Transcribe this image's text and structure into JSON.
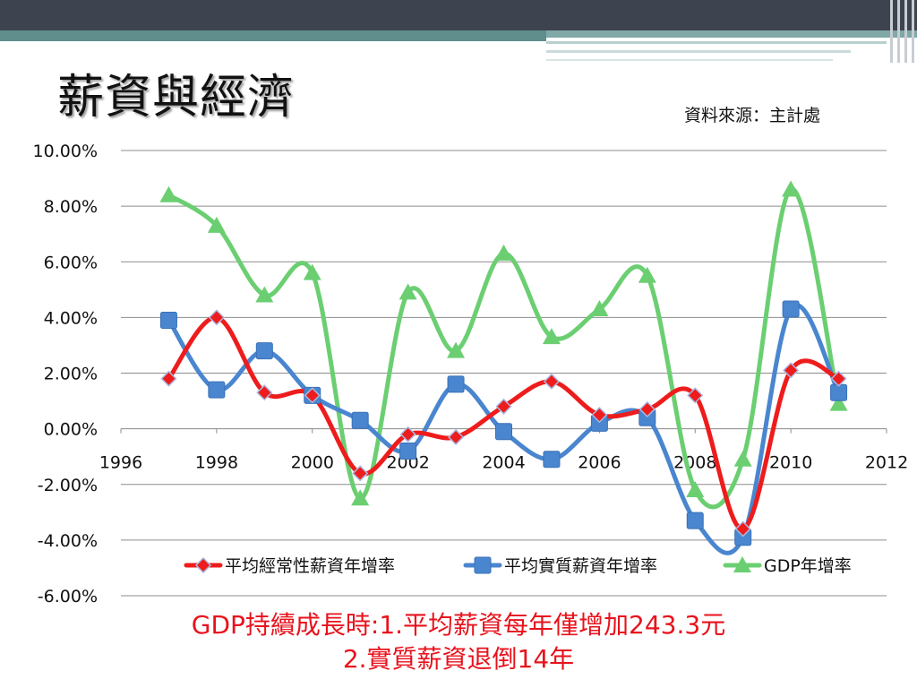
{
  "slide": {
    "title": "薪資與經濟",
    "source": "資料來源：主計處",
    "note_line1": "GDP持續成長時:1.平均薪資每年僅增加243.3元",
    "note_line2": "2.實質薪資退倒14年"
  },
  "colors": {
    "header_bar": "#3d4450",
    "header_stripe": "#5f8e8c",
    "note_text": "#e8121c"
  },
  "chart_data": {
    "type": "line",
    "smooth": true,
    "title": "",
    "xlabel": "",
    "ylabel": "",
    "xlim": [
      1996,
      2012
    ],
    "ylim": [
      -6,
      10
    ],
    "x_ticks": [
      "1996",
      "1998",
      "2000",
      "2002",
      "2004",
      "2006",
      "2008",
      "2010",
      "2012"
    ],
    "y_ticks": [
      "10.00%",
      "8.00%",
      "6.00%",
      "4.00%",
      "2.00%",
      "0.00%",
      "-2.00%",
      "-4.00%",
      "-6.00%"
    ],
    "grid": true,
    "legend_position": "bottom",
    "x": [
      1997,
      1998,
      1999,
      2000,
      2001,
      2002,
      2003,
      2004,
      2005,
      2006,
      2007,
      2008,
      2009,
      2010,
      2011
    ],
    "series": [
      {
        "name": "平均經常性薪資年增率",
        "color": "#ee1c1c",
        "marker": "diamond",
        "values": [
          1.8,
          4.0,
          1.3,
          1.2,
          -1.6,
          -0.2,
          -0.3,
          0.8,
          1.7,
          0.5,
          0.7,
          1.2,
          -3.6,
          2.1,
          1.8
        ]
      },
      {
        "name": "平均實質薪資年增率",
        "color": "#4a86cf",
        "marker": "square",
        "values": [
          3.9,
          1.4,
          2.8,
          1.2,
          0.3,
          -0.8,
          1.6,
          -0.1,
          -1.1,
          0.2,
          0.4,
          -3.3,
          -3.9,
          4.3,
          1.3
        ]
      },
      {
        "name": "GDP年增率",
        "color": "#6bcf72",
        "marker": "triangle",
        "values": [
          8.4,
          7.3,
          4.8,
          5.6,
          -2.5,
          4.9,
          2.8,
          6.3,
          3.3,
          4.3,
          5.5,
          -2.2,
          -1.1,
          8.6,
          0.9
        ]
      }
    ]
  }
}
